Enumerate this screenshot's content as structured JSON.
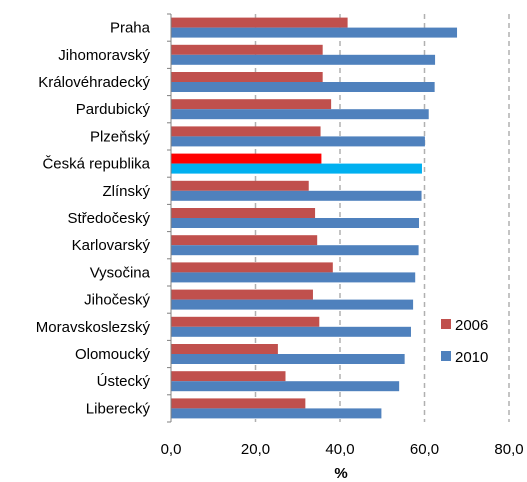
{
  "chart_data": {
    "type": "bar",
    "orientation": "horizontal",
    "categories": [
      "Praha",
      "Jihomoravský",
      "Královéhradecký",
      "Pardubický",
      "Plzeňský",
      "Česká republika",
      "Zlínský",
      "Středočeský",
      "Karlovarský",
      "Vysočina",
      "Jihočeský",
      "Moravskoslezský",
      "Olomoucký",
      "Ústecký",
      "Liberecký"
    ],
    "series": [
      {
        "name": "2006",
        "values": [
          41.8,
          35.9,
          35.9,
          37.9,
          35.4,
          35.6,
          32.6,
          34.1,
          34.6,
          38.3,
          33.6,
          35.1,
          25.3,
          27.1,
          31.8
        ]
      },
      {
        "name": "2010",
        "values": [
          67.7,
          62.5,
          62.4,
          61.0,
          60.1,
          59.4,
          59.3,
          58.7,
          58.6,
          57.8,
          57.3,
          56.8,
          55.3,
          54.0,
          49.8
        ]
      }
    ],
    "highlight_category": "Česká republika",
    "highlight_colors": {
      "2006": "#ff0000",
      "2010": "#00b0f0"
    },
    "colors": {
      "2006": "#c0504d",
      "2010": "#4f81bd"
    },
    "xlim": [
      0,
      80
    ],
    "xticks": [
      "0,0",
      "20,0",
      "40,0",
      "60,0",
      "80,0"
    ],
    "xlabel": "%",
    "grid": "vertical-dashed",
    "legend_position": "right"
  }
}
